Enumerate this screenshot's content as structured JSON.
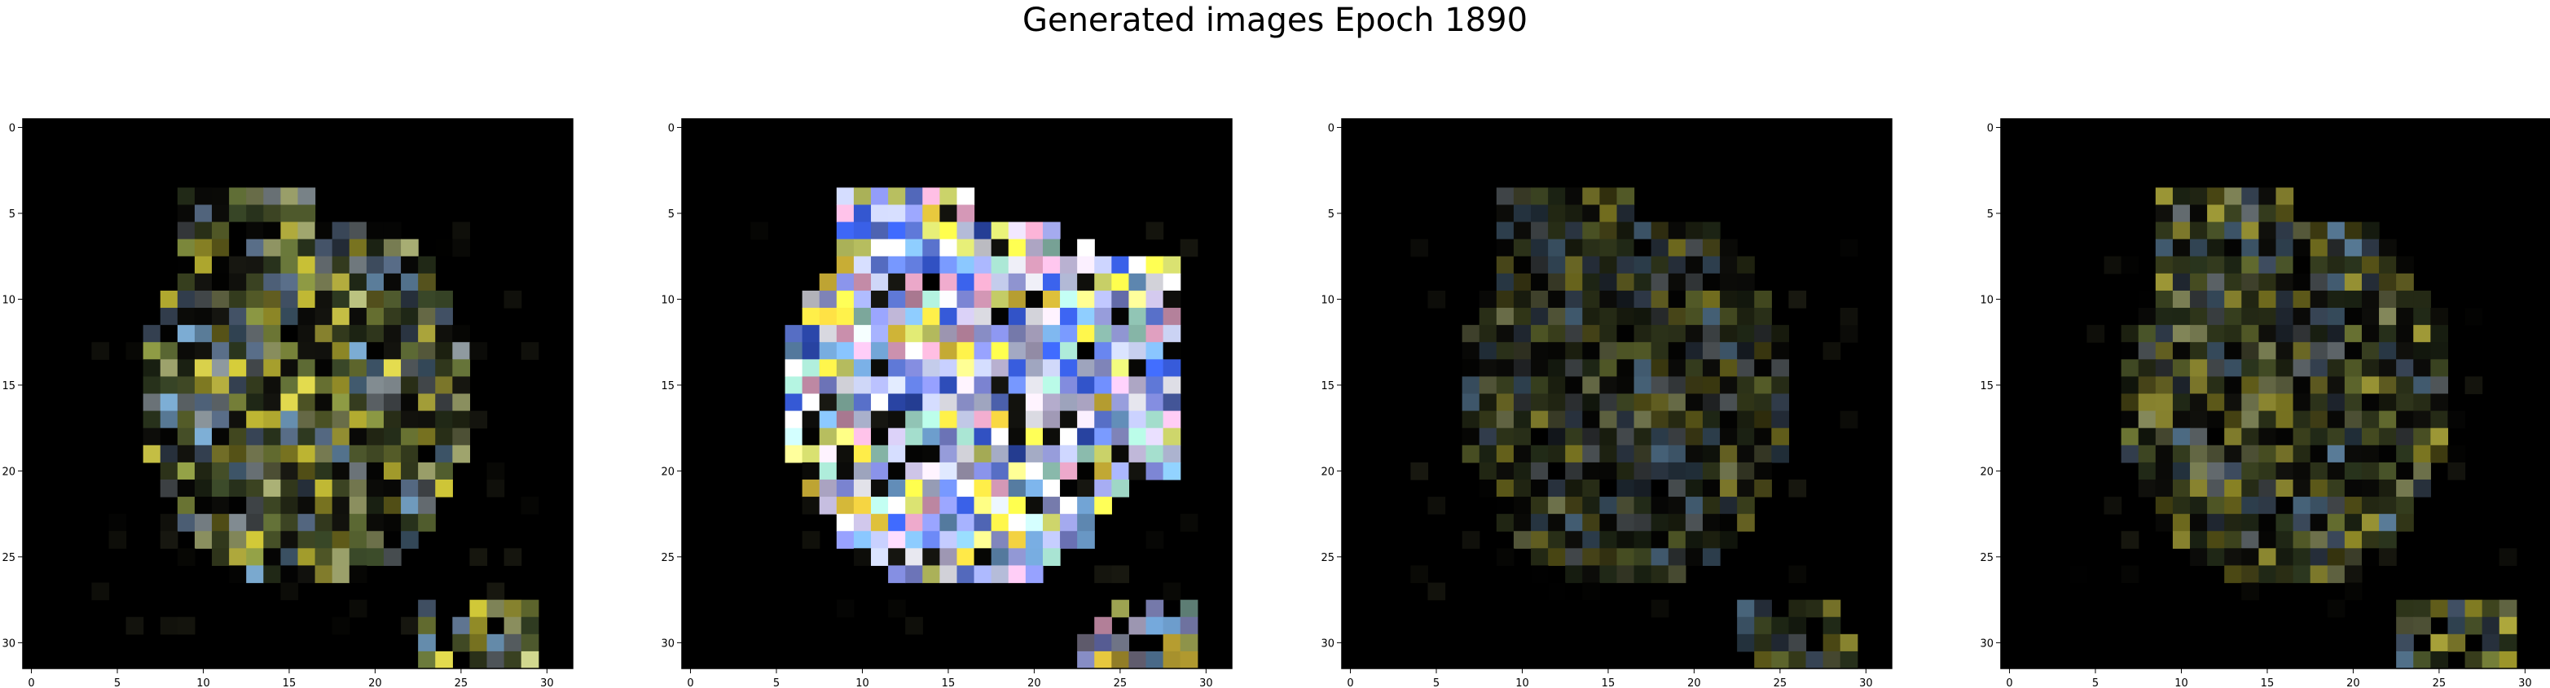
{
  "figure": {
    "title": "Generated images Epoch 1890"
  },
  "panels": [
    {
      "name": "sample-1",
      "brightness": 1.0,
      "palette": [
        "#d8cf3a",
        "#9aa84a",
        "#6b7a3c",
        "#4f5a2e",
        "#8f9aa0",
        "#7fb0d8",
        "#c9d08a",
        "#3f4f2c",
        "#e8e050",
        "#5a6f8a"
      ],
      "x_ticks": [
        "0",
        "5",
        "10",
        "15",
        "20",
        "25",
        "30"
      ],
      "y_ticks": [
        "0",
        "5",
        "10",
        "15",
        "20",
        "25",
        "30"
      ]
    },
    {
      "name": "sample-2",
      "brightness": 1.0,
      "palette": [
        "#9aa0e0",
        "#c8d0f0",
        "#e8e8f0",
        "#7f88d8",
        "#6fa0d0",
        "#d8e070",
        "#e0a0c0",
        "#9ad0c0",
        "#5870c8",
        "#f0d040",
        "#b8b0d0",
        "#3050c0"
      ],
      "x_ticks": [
        "0",
        "5",
        "10",
        "15",
        "20",
        "25",
        "30"
      ],
      "y_ticks": [
        "0",
        "5",
        "10",
        "15",
        "20",
        "25",
        "30"
      ]
    },
    {
      "name": "sample-3",
      "brightness": 0.55,
      "palette": [
        "#d8cf3a",
        "#9aa84a",
        "#6b7a3c",
        "#4f5a2e",
        "#8f9aa0",
        "#7fb0d8",
        "#c9d08a",
        "#3f4f2c",
        "#e8e050",
        "#5a6f8a"
      ],
      "x_ticks": [
        "0",
        "5",
        "10",
        "15",
        "20",
        "25",
        "30"
      ],
      "y_ticks": [
        "0",
        "5",
        "10",
        "15",
        "20",
        "25",
        "30"
      ]
    },
    {
      "name": "sample-4",
      "brightness": 0.7,
      "palette": [
        "#d8cf3a",
        "#9aa84a",
        "#6b7a3c",
        "#4f5a2e",
        "#8f9aa0",
        "#7fb0d8",
        "#c9d08a",
        "#3f4f2c",
        "#e8e050",
        "#5a6f8a"
      ],
      "x_ticks": [
        "0",
        "5",
        "10",
        "15",
        "20",
        "25",
        "30"
      ],
      "y_ticks": [
        "0",
        "5",
        "10",
        "15",
        "20",
        "25",
        "30"
      ]
    }
  ]
}
